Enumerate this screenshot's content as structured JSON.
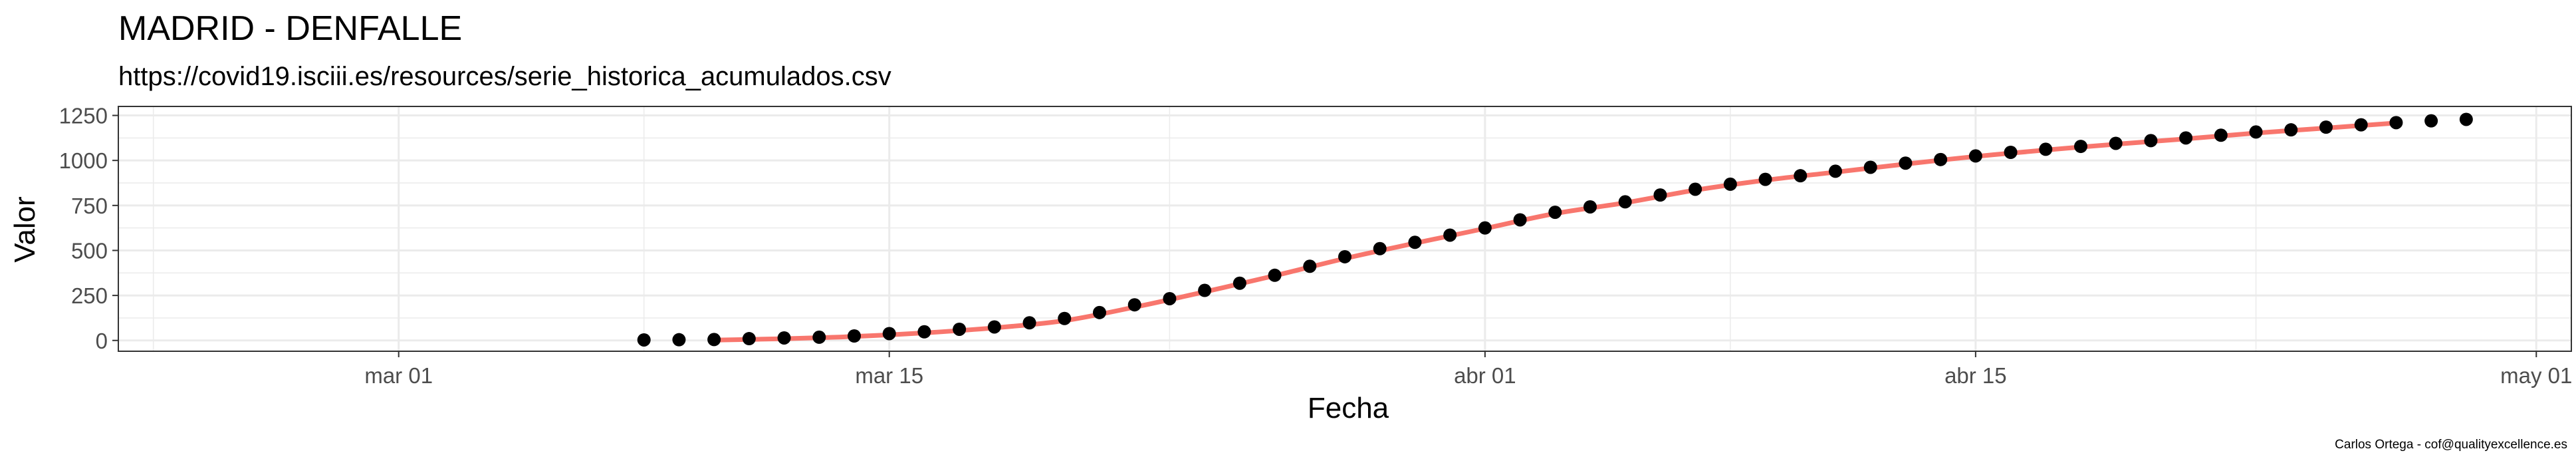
{
  "chart_data": {
    "type": "scatter",
    "title": "MADRID - DENFALLE",
    "subtitle": "https://covid19.isciii.es/resources/serie_historica_acumulados.csv",
    "xlabel": "Fecha",
    "ylabel": "Valor",
    "caption": "Carlos Ortega - cof@qualityexcellence.es",
    "x_ticks": [
      "mar 01",
      "mar 15",
      "abr 01",
      "abr 15",
      "may 01"
    ],
    "y_ticks": [
      "0",
      "250",
      "500",
      "750",
      "1000",
      "1250"
    ],
    "xlim": [
      "2020-02-22",
      "2020-05-02"
    ],
    "ylim": [
      -60,
      1300
    ],
    "grid": true,
    "colors": {
      "points": "#000000",
      "smooth": "#f8766d",
      "grid": "#ebebeb",
      "panel_border": "#333333"
    },
    "series": [
      {
        "type": "points",
        "x": [
          "2020-03-08",
          "2020-03-09",
          "2020-03-10",
          "2020-03-11",
          "2020-03-12",
          "2020-03-13",
          "2020-03-14",
          "2020-03-15",
          "2020-03-16",
          "2020-03-17",
          "2020-03-18",
          "2020-03-19",
          "2020-03-20",
          "2020-03-21",
          "2020-03-22",
          "2020-03-23",
          "2020-03-24",
          "2020-03-25",
          "2020-03-26",
          "2020-03-27",
          "2020-03-28",
          "2020-03-29",
          "2020-03-30",
          "2020-03-31",
          "2020-04-01",
          "2020-04-02",
          "2020-04-03",
          "2020-04-04",
          "2020-04-05",
          "2020-04-06",
          "2020-04-07",
          "2020-04-08",
          "2020-04-09",
          "2020-04-10",
          "2020-04-11",
          "2020-04-12",
          "2020-04-13",
          "2020-04-14",
          "2020-04-15",
          "2020-04-16",
          "2020-04-17",
          "2020-04-18",
          "2020-04-19",
          "2020-04-20",
          "2020-04-21",
          "2020-04-22",
          "2020-04-23",
          "2020-04-24",
          "2020-04-25",
          "2020-04-26",
          "2020-04-27",
          "2020-04-28",
          "2020-04-29"
        ],
        "y": [
          3,
          4,
          5,
          10,
          14,
          18,
          25,
          38,
          48,
          62,
          75,
          98,
          122,
          155,
          198,
          232,
          278,
          318,
          362,
          412,
          465,
          510,
          545,
          585,
          625,
          670,
          712,
          742,
          770,
          808,
          840,
          868,
          895,
          915,
          940,
          962,
          985,
          1005,
          1025,
          1045,
          1062,
          1078,
          1095,
          1110,
          1125,
          1140,
          1158,
          1170,
          1185,
          1198,
          1210,
          1220,
          1228
        ]
      },
      {
        "type": "smooth",
        "x": [
          "2020-03-10",
          "2020-03-12",
          "2020-03-14",
          "2020-03-16",
          "2020-03-18",
          "2020-03-20",
          "2020-03-22",
          "2020-03-24",
          "2020-03-26",
          "2020-03-28",
          "2020-03-30",
          "2020-04-01",
          "2020-04-03",
          "2020-04-05",
          "2020-04-07",
          "2020-04-09",
          "2020-04-11",
          "2020-04-13",
          "2020-04-15",
          "2020-04-17",
          "2020-04-19",
          "2020-04-21",
          "2020-04-23",
          "2020-04-25",
          "2020-04-27"
        ],
        "y": [
          2,
          10,
          22,
          42,
          70,
          110,
          185,
          270,
          360,
          455,
          540,
          622,
          705,
          765,
          835,
          890,
          935,
          980,
          1022,
          1058,
          1090,
          1120,
          1152,
          1180,
          1208
        ]
      }
    ]
  }
}
